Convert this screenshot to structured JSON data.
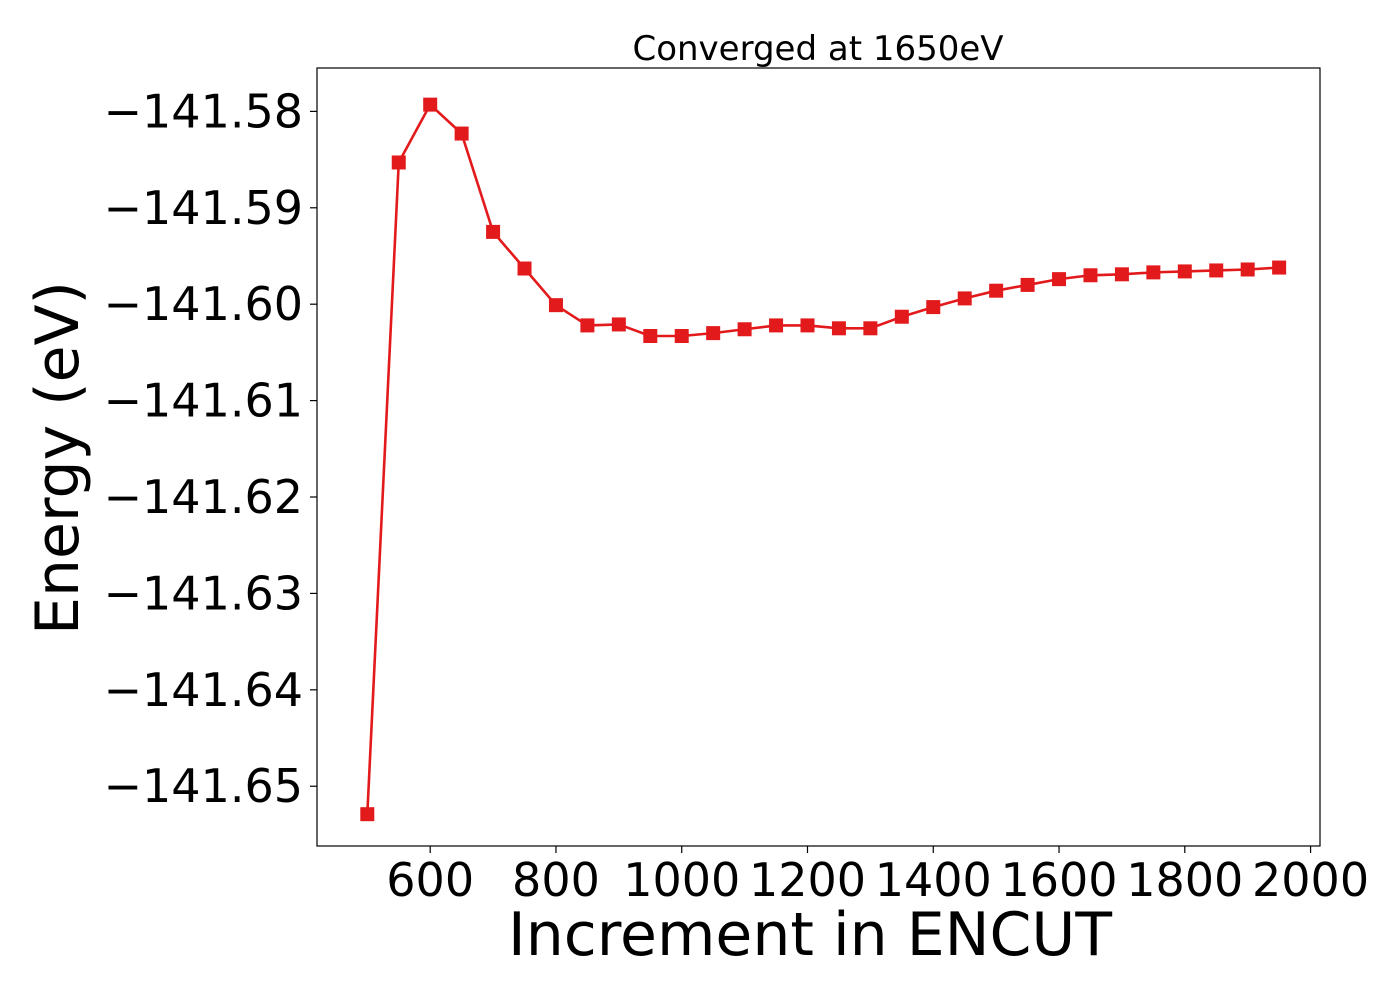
{
  "chart_data": {
    "type": "line",
    "title": "Converged at 1650eV",
    "xlabel": "Increment in ENCUT",
    "ylabel": "Energy (eV)",
    "xlim": [
      420,
      2015
    ],
    "ylim": [
      -141.6562,
      -141.5755
    ],
    "xticks": [
      600,
      800,
      1000,
      1200,
      1400,
      1600,
      1800,
      2000
    ],
    "xtick_labels": [
      "600",
      "800",
      "1000",
      "1200",
      "1400",
      "1600",
      "1800",
      "2000"
    ],
    "yticks": [
      -141.58,
      -141.59,
      -141.6,
      -141.61,
      -141.62,
      -141.63,
      -141.64,
      -141.65
    ],
    "ytick_labels": [
      "−141.58",
      "−141.59",
      "−141.60",
      "−141.61",
      "−141.62",
      "−141.63",
      "−141.64",
      "−141.65"
    ],
    "grid": false,
    "marker": "square",
    "series": [
      {
        "color": "#e31a1c",
        "x": [
          500,
          550,
          600,
          650,
          700,
          750,
          800,
          850,
          900,
          950,
          1000,
          1050,
          1100,
          1150,
          1200,
          1250,
          1300,
          1350,
          1400,
          1450,
          1500,
          1550,
          1600,
          1650,
          1700,
          1750,
          1800,
          1850,
          1900,
          1950
        ],
        "y": [
          -141.6529,
          -141.5853,
          -141.5793,
          -141.5823,
          -141.5925,
          -141.5963,
          -141.6001,
          -141.6022,
          -141.6021,
          -141.6033,
          -141.6033,
          -141.603,
          -141.6026,
          -141.6022,
          -141.6022,
          -141.6025,
          -141.6025,
          -141.6013,
          -141.6003,
          -141.5994,
          -141.5986,
          -141.598,
          -141.5974,
          -141.597,
          -141.5969,
          -141.5967,
          -141.5966,
          -141.5965,
          -141.5964,
          -141.5962
        ]
      }
    ]
  }
}
